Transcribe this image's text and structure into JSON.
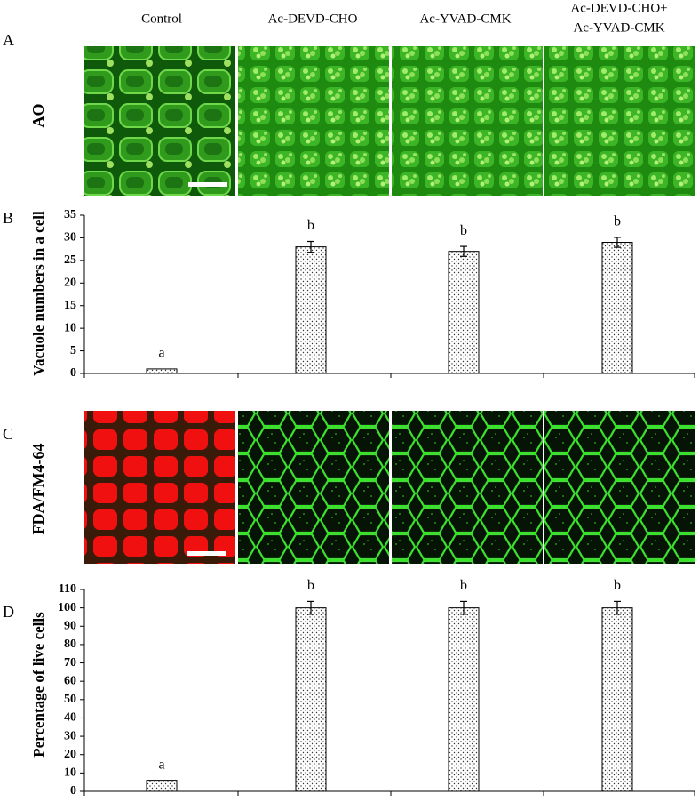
{
  "panel_labels": [
    "A",
    "B",
    "C",
    "D"
  ],
  "column_headers": [
    [
      "Control"
    ],
    [
      "Ac-DEVD-CHO"
    ],
    [
      "Ac-YVAD-CMK"
    ],
    [
      "Ac-DEVD-CHO+",
      "Ac-YVAD-CMK"
    ]
  ],
  "row_labels": [
    "AO",
    "FDA/FM4-64"
  ],
  "chart_data": [
    {
      "type": "bar",
      "ylabel": "Vacuole numbers in a cell",
      "categories": [
        null,
        null,
        null,
        null
      ],
      "values": [
        1,
        28,
        27,
        29
      ],
      "errors": [
        0,
        1.2,
        1.1,
        1.1
      ],
      "annotations": [
        "a",
        "b",
        "b",
        "b"
      ],
      "ylim": [
        0,
        35
      ],
      "yticks": [
        0,
        5,
        10,
        15,
        20,
        25,
        30,
        35
      ]
    },
    {
      "type": "bar",
      "ylabel": "Percentage of live cells",
      "categories": [
        null,
        null,
        null,
        null
      ],
      "values": [
        6,
        100,
        100,
        100
      ],
      "errors": [
        0,
        3.5,
        3.5,
        3.5
      ],
      "annotations": [
        "a",
        "b",
        "b",
        "b"
      ],
      "ylim": [
        0,
        110
      ],
      "yticks": [
        0,
        10,
        20,
        30,
        40,
        50,
        60,
        70,
        80,
        90,
        100,
        110
      ]
    }
  ]
}
